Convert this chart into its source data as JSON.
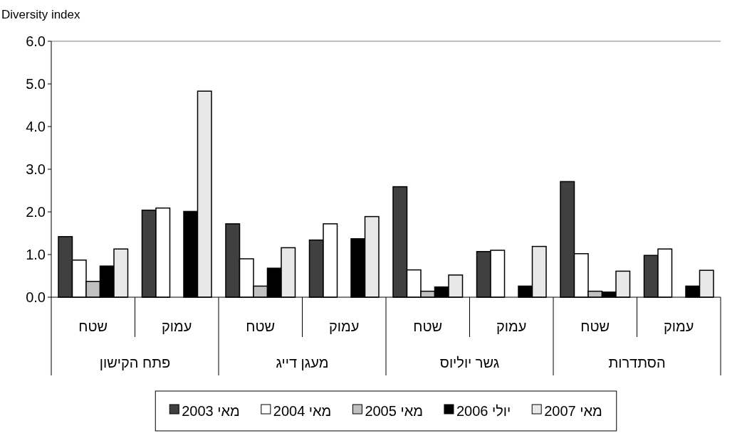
{
  "chart_data": {
    "type": "bar",
    "ylabel": "Diversity index",
    "categories": [
      "שטח",
      "עמוק",
      "שטח",
      "עמוק",
      "שטח",
      "עמוק",
      "שטח",
      "עמוק"
    ],
    "series": [
      {
        "name": "מאי 2003",
        "color": "#404040",
        "values": [
          1.42,
          2.04,
          1.72,
          1.34,
          2.59,
          1.07,
          2.71,
          0.98
        ]
      },
      {
        "name": "מאי 2004",
        "color": "#ffffff",
        "values": [
          0.87,
          2.09,
          0.9,
          1.72,
          0.64,
          1.1,
          1.02,
          1.13
        ]
      },
      {
        "name": "מאי 2005",
        "color": "#c0c0c0",
        "values": [
          0.37,
          null,
          0.26,
          null,
          0.14,
          null,
          0.14,
          null
        ]
      },
      {
        "name": "יולי 2006",
        "color": "#000000",
        "values": [
          0.73,
          2.01,
          0.68,
          1.37,
          0.24,
          0.26,
          0.12,
          0.26
        ]
      },
      {
        "name": "מאי 2007",
        "color": "#e8e8e8",
        "values": [
          1.13,
          4.83,
          1.16,
          1.89,
          0.52,
          1.19,
          0.61,
          0.63
        ]
      }
    ],
    "annotations": [
      "פתח הקישון",
      "מעגן דייג",
      "גשר יוליוס",
      "הסתדרות"
    ],
    "ylim": [
      0,
      6
    ],
    "yticks": [
      {
        "value": 0,
        "label": "0.0"
      },
      {
        "value": 1,
        "label": "1.0"
      },
      {
        "value": 2,
        "label": "2.0"
      },
      {
        "value": 3,
        "label": "3.0"
      },
      {
        "value": 4,
        "label": "4.0"
      },
      {
        "value": 5,
        "label": "5.0"
      },
      {
        "value": 6,
        "label": "6.0"
      }
    ],
    "legend": "bottom"
  }
}
